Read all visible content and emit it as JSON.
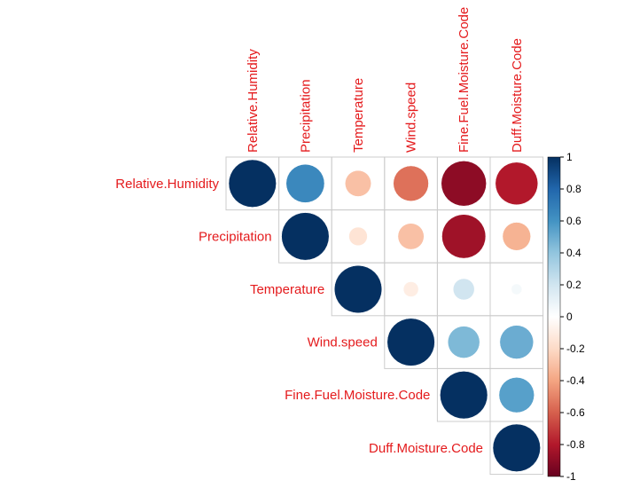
{
  "chart_data": {
    "type": "heatmap",
    "style": "corrplot-upper-circle",
    "variables": [
      "Relative.Humidity",
      "Precipitation",
      "Temperature",
      "Wind.speed",
      "Fine.Fuel.Moisture.Code",
      "Duff.Moisture.Code"
    ],
    "matrix": [
      [
        1.0,
        0.65,
        -0.3,
        -0.55,
        -0.9,
        -0.8
      ],
      [
        0.65,
        1.0,
        -0.15,
        -0.3,
        -0.85,
        -0.35
      ],
      [
        -0.3,
        -0.15,
        1.0,
        -0.1,
        0.2,
        0.05
      ],
      [
        -0.55,
        -0.3,
        -0.1,
        1.0,
        0.45,
        0.5
      ],
      [
        -0.9,
        -0.85,
        0.2,
        0.45,
        1.0,
        0.55
      ],
      [
        -0.8,
        -0.35,
        0.05,
        0.5,
        0.55,
        1.0
      ]
    ],
    "show": "upper",
    "colorbar": {
      "range": [
        -1,
        1
      ],
      "ticks": [
        "1",
        "0.8",
        "0.6",
        "0.4",
        "0.2",
        "0",
        "-0.2",
        "-0.4",
        "-0.6",
        "-0.8",
        "-1"
      ],
      "colors": [
        "#67001F",
        "#B2182B",
        "#D6604D",
        "#F4A582",
        "#FDDBC7",
        "#FFFFFF",
        "#D1E5F0",
        "#92C5DE",
        "#4393C3",
        "#2166AC",
        "#053061"
      ]
    },
    "label_color": "#e41a1c",
    "grid_color": "#cccccc"
  }
}
